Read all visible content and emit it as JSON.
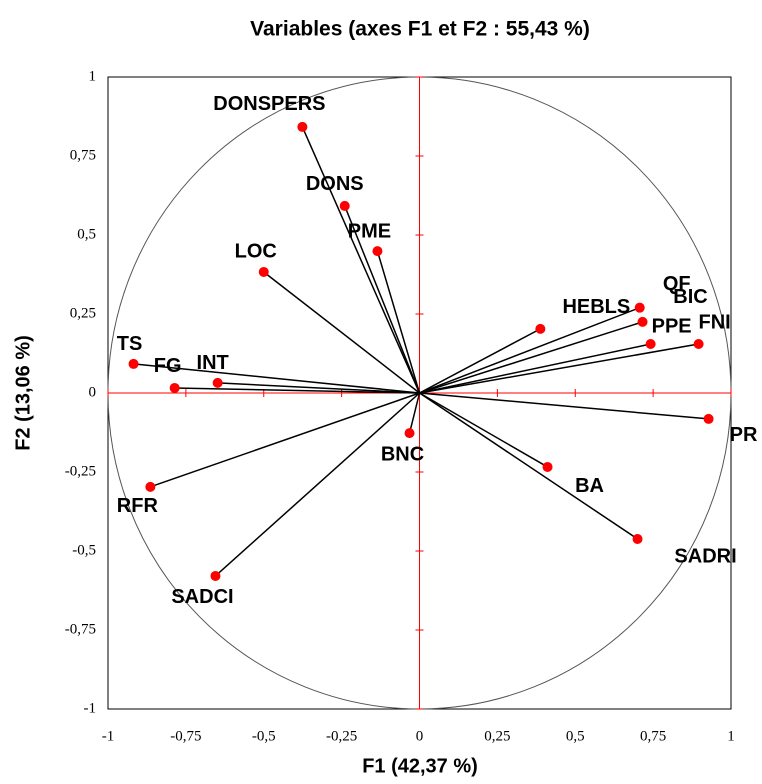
{
  "chart_data": {
    "type": "scatter",
    "title": "Variables (axes F1 et F2 : 55,43 %)",
    "xlabel": "F1 (42,37 %)",
    "ylabel": "F2 (13,06 %)",
    "labels": [
      "DONSPERS",
      "DONS",
      "PME",
      "LOC",
      "TS",
      "FG",
      "INT",
      "RFR",
      "SADCI",
      "BNC",
      "BA",
      "SADRI",
      "HEBLS",
      "QF",
      "BIC",
      "PPE",
      "FNI",
      "PR"
    ],
    "x": [
      -0.376,
      -0.24,
      -0.135,
      -0.5,
      -0.918,
      -0.786,
      -0.648,
      -0.864,
      -0.655,
      -0.032,
      0.411,
      0.7,
      0.388,
      0.707,
      0.716,
      0.742,
      0.896,
      0.928
    ],
    "values": [
      0.842,
      0.592,
      0.449,
      0.383,
      0.092,
      0.016,
      0.032,
      -0.297,
      -0.579,
      -0.127,
      -0.234,
      -0.462,
      0.203,
      0.27,
      0.225,
      0.155,
      0.155,
      -0.082
    ],
    "color": "#ff0000",
    "xlim": [
      -1,
      1
    ],
    "ylim": [
      -1,
      1
    ],
    "xticks": [
      -1,
      {
        "value": -0.75,
        "label": "-0,75"
      },
      {
        "value": -0.5,
        "label": "-0,5"
      },
      {
        "value": -0.25,
        "label": "-0,25"
      },
      0,
      {
        "value": 0.25,
        "label": "0,25"
      },
      {
        "value": 0.5,
        "label": "0,5"
      },
      {
        "value": 0.75,
        "label": "0,75"
      },
      1
    ],
    "yticks": [
      -1,
      {
        "value": -0.75,
        "label": "-0,75"
      },
      {
        "value": -0.5,
        "label": "-0,5"
      },
      {
        "value": -0.25,
        "label": "-0,25"
      },
      0,
      {
        "value": 0.25,
        "label": "0,25"
      },
      {
        "value": 0.5,
        "label": "0,5"
      },
      {
        "value": 0.75,
        "label": "0,75"
      },
      1
    ]
  }
}
